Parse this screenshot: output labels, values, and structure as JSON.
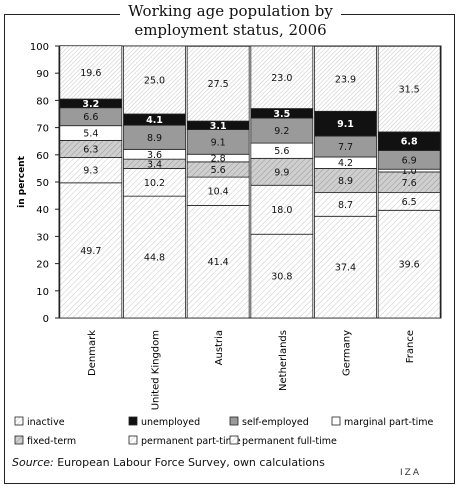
{
  "chart_data": {
    "type": "bar",
    "stacked": true,
    "title": "Working age population by employment status, 2006",
    "title_lines": [
      "Working age population by",
      "employment status, 2006"
    ],
    "ylabel": "in percent",
    "ylim": [
      0,
      100
    ],
    "yticks": [
      "0",
      "10",
      "20",
      "30",
      "40",
      "50",
      "60",
      "70",
      "80",
      "90",
      "100"
    ],
    "grid": false,
    "legend_position": "bottom",
    "categories": [
      "Denmark",
      "United Kingdom",
      "Austria",
      "Netherlands",
      "Germany",
      "France"
    ],
    "series": [
      {
        "name": "permanent full-time",
        "pattern": "hatch-light",
        "values": [
          49.7,
          44.8,
          41.4,
          30.8,
          37.4,
          39.6
        ],
        "labels": [
          "49.7",
          "44.8",
          "41.4",
          "30.8",
          "37.4",
          "39.6"
        ]
      },
      {
        "name": "permanent part-time",
        "pattern": "hatch-light",
        "values": [
          9.3,
          10.2,
          10.4,
          18.0,
          8.7,
          6.5
        ],
        "labels": [
          "9.3",
          "10.2",
          "10.4",
          "18.0",
          "8.7",
          "6.5"
        ]
      },
      {
        "name": "fixed-term",
        "pattern": "hatch-dark",
        "values": [
          6.3,
          3.4,
          5.6,
          9.9,
          8.9,
          7.6
        ],
        "labels": [
          "6.3",
          "3.4",
          "5.6",
          "9.9",
          "8.9",
          "7.6"
        ]
      },
      {
        "name": "marginal part-time",
        "pattern": "white",
        "values": [
          5.4,
          3.6,
          2.8,
          5.6,
          4.2,
          1.0
        ],
        "labels": [
          "5.4",
          "3.6",
          "2.8",
          "5.6",
          "4.2",
          "1.0"
        ]
      },
      {
        "name": "self-employed",
        "pattern": "gray",
        "values": [
          6.6,
          8.9,
          9.1,
          9.2,
          7.7,
          6.9
        ],
        "labels": [
          "6.6",
          "8.9",
          "9.1",
          "9.2",
          "7.7",
          "6.9"
        ]
      },
      {
        "name": "unemployed",
        "pattern": "black",
        "values": [
          3.2,
          4.1,
          3.1,
          3.5,
          9.1,
          6.8
        ],
        "labels": [
          "3.2",
          "4.1",
          "3.1",
          "3.5",
          "9.1",
          "6.8"
        ]
      },
      {
        "name": "inactive",
        "pattern": "hatch-fine",
        "values": [
          19.6,
          25.0,
          27.5,
          23.0,
          23.9,
          31.5
        ],
        "labels": [
          "19.6",
          "25.0",
          "27.5",
          "23.0",
          "23.9",
          "31.5"
        ]
      }
    ],
    "legend_order": [
      "inactive",
      "unemployed",
      "self-employed",
      "marginal part-time",
      "fixed-term",
      "permanent part-time",
      "permanent full-time"
    ],
    "colors": {
      "black": "#111111",
      "gray": "#9a9a9a",
      "white": "#ffffff",
      "hatch_stroke": "#888888",
      "hatch_dark_bg": "#cfcfcf"
    }
  },
  "source": {
    "label": "Source:",
    "text": " European Labour Force Survey, own calculations"
  },
  "logo": "IZA"
}
